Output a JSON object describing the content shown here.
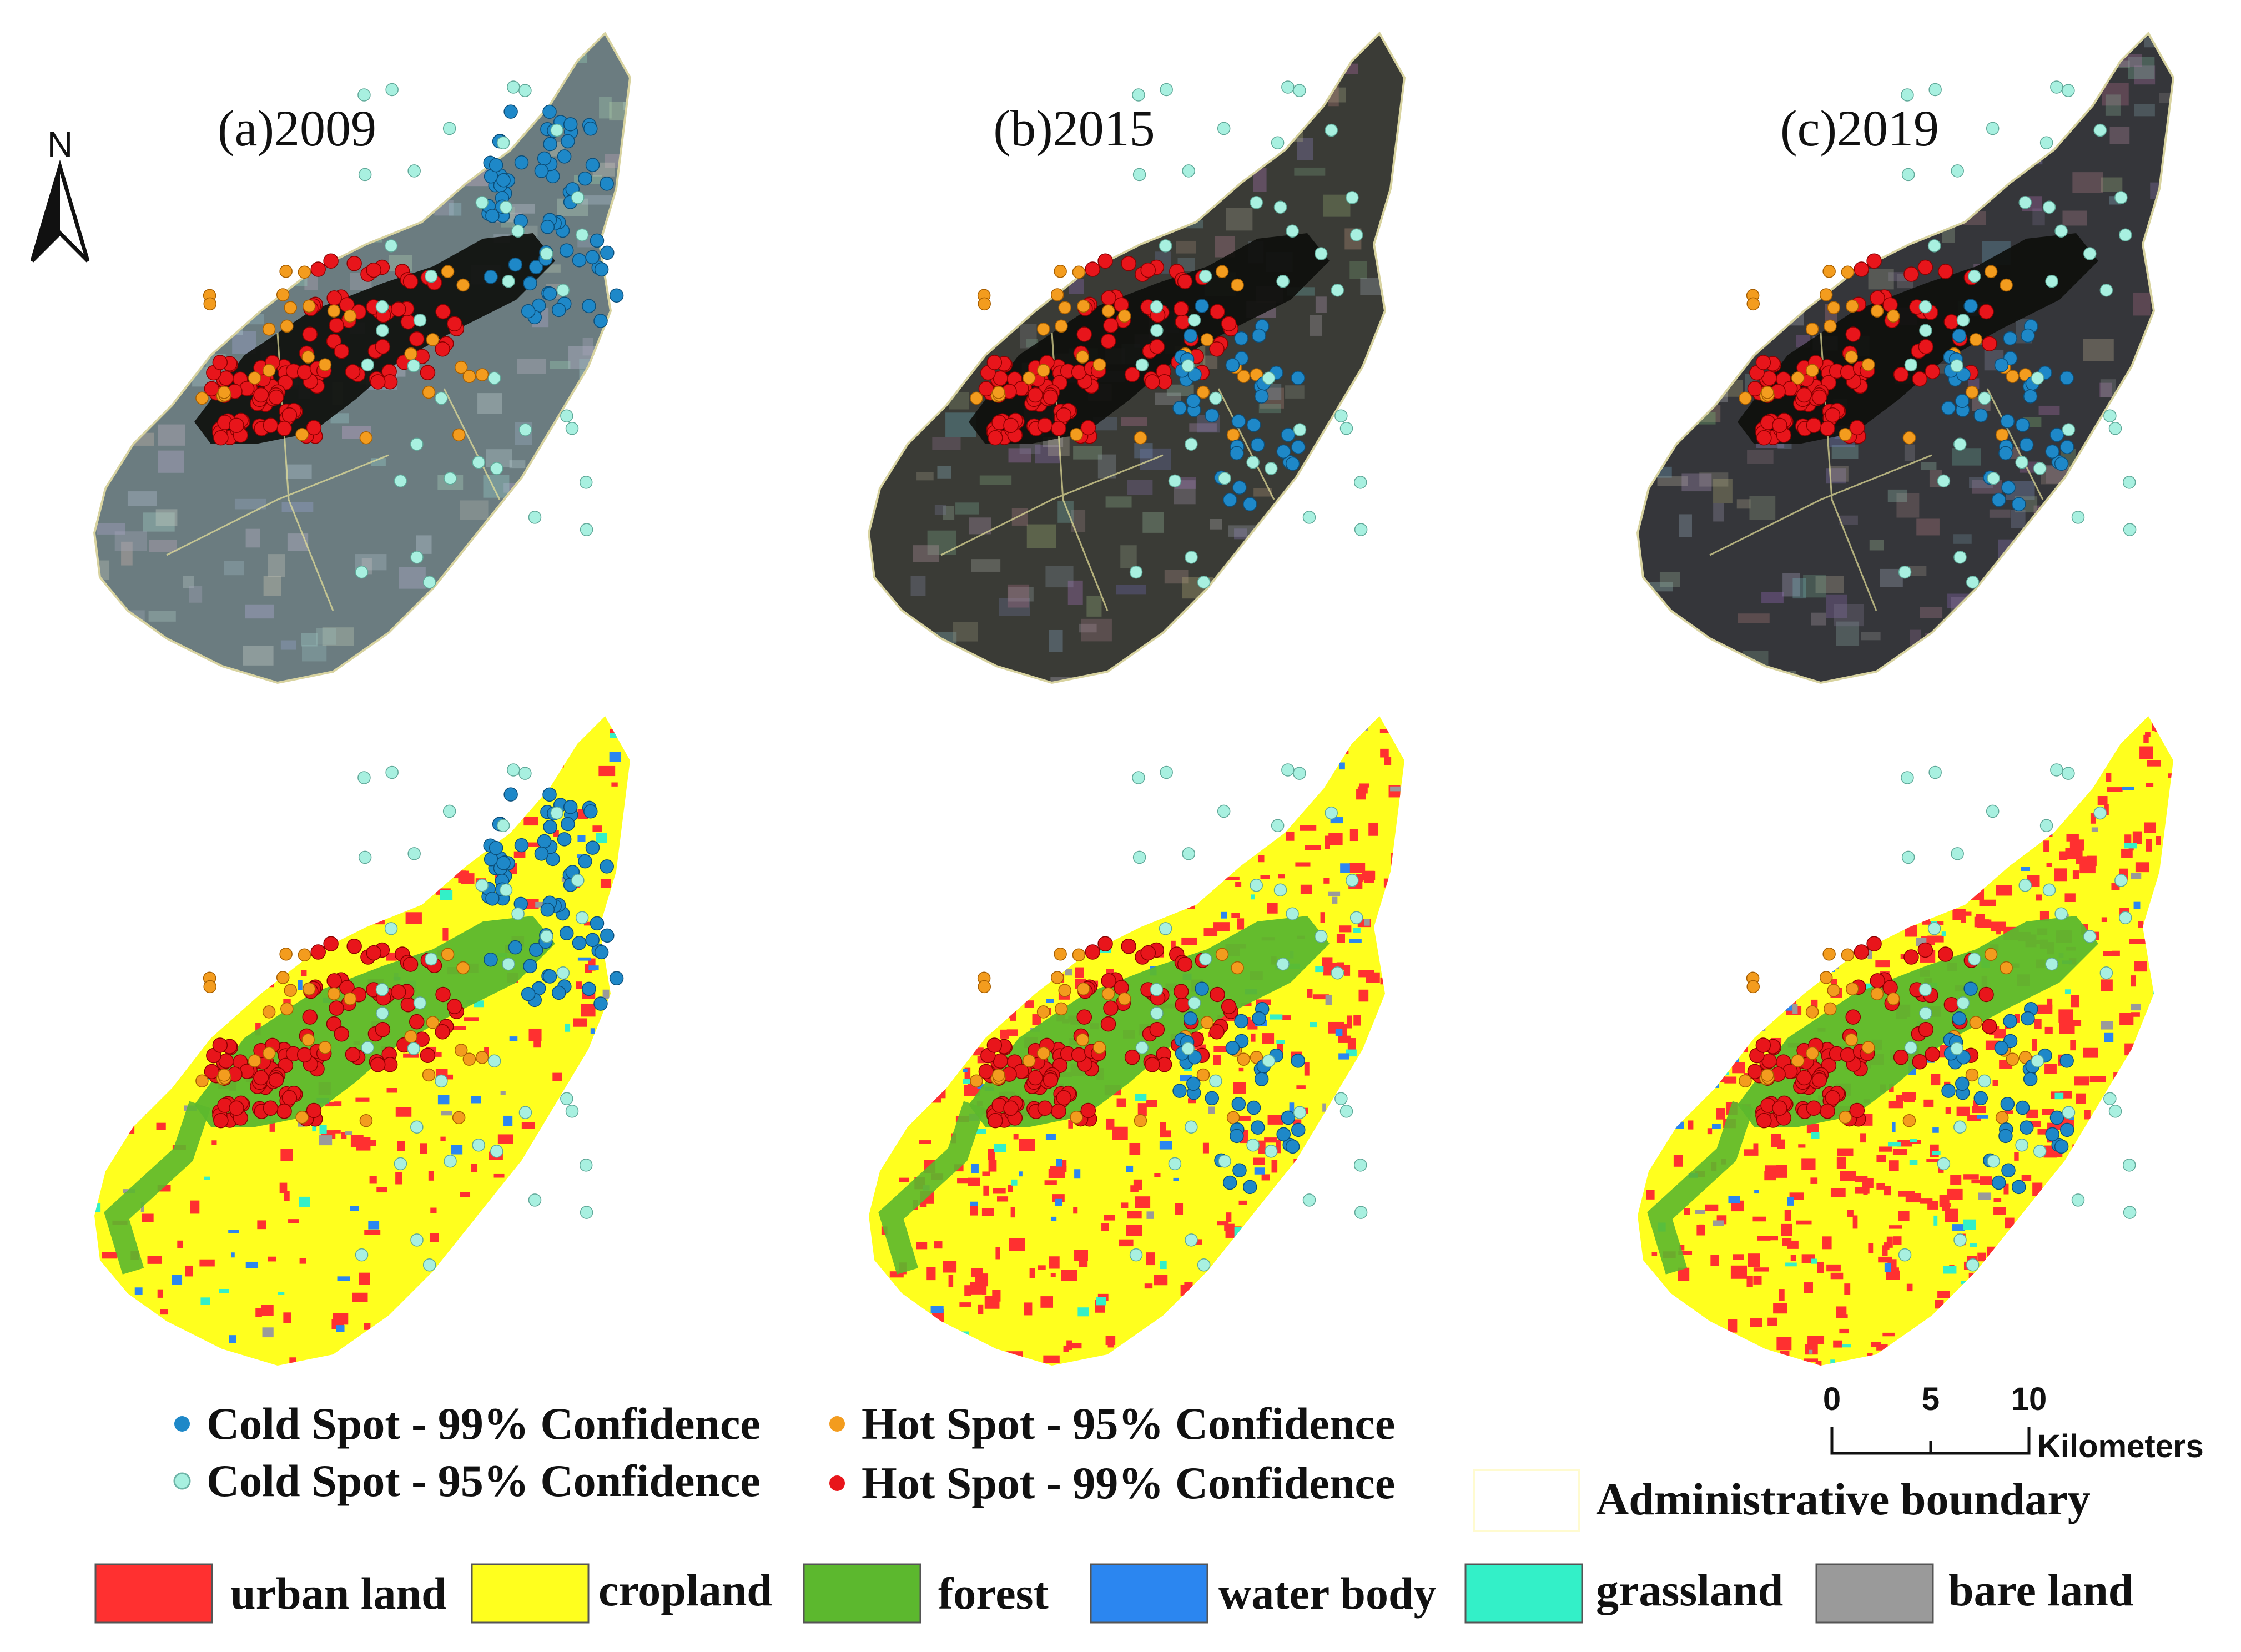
{
  "panels": [
    {
      "label": "(a)2009"
    },
    {
      "label": "(b)2015"
    },
    {
      "label": "(c)2019"
    }
  ],
  "north_arrow": {
    "label": "N"
  },
  "spot_legend": [
    {
      "label": "Cold Spot - 99% Confidence",
      "color": "#1e88c8"
    },
    {
      "label": "Cold Spot - 95% Confidence",
      "color": "#a8f0e0"
    },
    {
      "label": "Hot Spot - 95% Confidence",
      "color": "#f39c1e"
    },
    {
      "label": "Hot Spot - 99% Confidence",
      "color": "#e8151b"
    }
  ],
  "boundary_legend": {
    "label": "Administrative boundary",
    "color": "#fffbd0"
  },
  "scale_bar": {
    "ticks": [
      "0",
      "5",
      "10"
    ],
    "unit": "Kilometers"
  },
  "landuse_legend": [
    {
      "label": "urban land",
      "color": "#ff3030"
    },
    {
      "label": "cropland",
      "color": "#ffff1e"
    },
    {
      "label": "forest",
      "color": "#5cb82e"
    },
    {
      "label": "water body",
      "color": "#2b86f0"
    },
    {
      "label": "grassland",
      "color": "#33f0c8"
    },
    {
      "label": "bare land",
      "color": "#9a9a9a"
    }
  ],
  "colors": {
    "satellite_2009": "#6b7c80",
    "satellite_2015": "#3a3b36",
    "satellite_2019": "#35363a",
    "hill_dark": "#0e0f0c"
  }
}
